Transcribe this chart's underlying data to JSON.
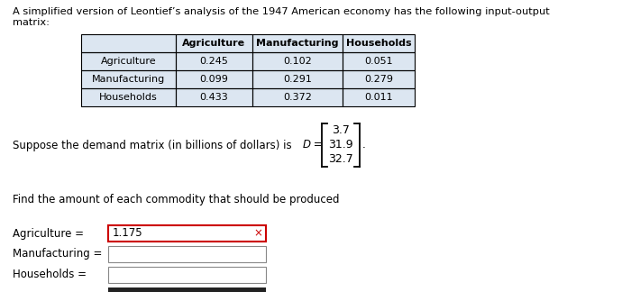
{
  "title_line1": "A simplified version of Leontief’s analysis of the 1947 American economy has the following input-output",
  "title_line2": "matrix:",
  "table_col_headers": [
    "",
    "Agriculture",
    "Manufacturing",
    "Households"
  ],
  "table_row_headers": [
    "Agriculture",
    "Manufacturing",
    "Households"
  ],
  "table_data": [
    [
      0.245,
      0.102,
      0.051
    ],
    [
      0.099,
      0.291,
      0.279
    ],
    [
      0.433,
      0.372,
      0.011
    ]
  ],
  "demand_text": "Suppose the demand matrix (in billions of dollars) is ",
  "demand_var": "D",
  "demand_eq": " = ",
  "demand_values": [
    "3.7",
    "31.9",
    "32.7"
  ],
  "find_text": "Find the amount of each commodity that should be produced",
  "agri_label": "Agriculture =",
  "agri_value": "1.175",
  "manuf_label": "Manufacturing =",
  "house_label": "Households =",
  "bg_color": "#ffffff",
  "text_color": "#000000",
  "table_header_bg": "#dce6f1",
  "table_data_bg": "#dce6f1",
  "table_border_color": "#000000",
  "input_box_color": "#ffffff",
  "input_border_color": "#888888",
  "agri_box_border": "#cc0000",
  "font_size_title": 8.2,
  "font_size_table": 8.0,
  "font_size_body": 8.5,
  "font_size_matrix": 9.0
}
